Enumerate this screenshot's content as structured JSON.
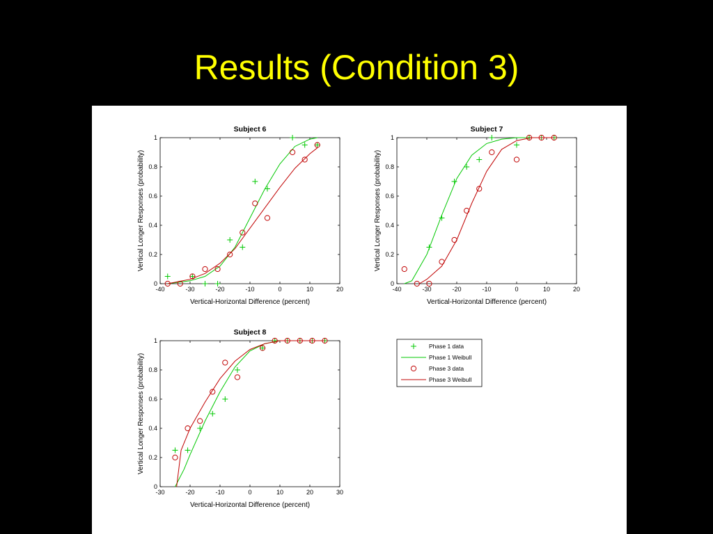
{
  "slide_title": "Results (Condition 3)",
  "legend": [
    "Phase 1 data",
    "Phase 1 Weibull",
    "Phase 3 data",
    "Phase 3 Weibull"
  ],
  "chart_data": [
    {
      "type": "scatter",
      "title": "Subject 6",
      "x_label": "Vertical-Horizontal Difference (percent)",
      "y_label": "Vertical Longer Responses (probability)",
      "xlim": [
        -40,
        20
      ],
      "xticks": [
        -40,
        -30,
        -20,
        -10,
        0,
        10,
        20
      ],
      "ylim": [
        0,
        1
      ],
      "yticks": [
        0,
        0.2,
        0.4,
        0.6,
        0.8,
        1
      ],
      "series": [
        {
          "mode": "markers",
          "marker": "plus",
          "color": "#00c800",
          "x": [
            -37.5,
            -29.2,
            -25,
            -20.8,
            -16.7,
            -12.5,
            -8.3,
            -4.2,
            4.2,
            8.3,
            12.5
          ],
          "values": [
            0.05,
            0.05,
            0,
            0,
            0.3,
            0.25,
            0.7,
            0.65,
            1,
            0.95,
            0.95
          ]
        },
        {
          "mode": "line",
          "color": "#00c800",
          "x": [
            -37.5,
            -30,
            -25,
            -20,
            -15,
            -10,
            -5,
            0,
            5,
            10,
            12.5
          ],
          "values": [
            0,
            0.02,
            0.05,
            0.12,
            0.25,
            0.45,
            0.65,
            0.82,
            0.94,
            0.99,
            1
          ]
        },
        {
          "mode": "markers",
          "marker": "circle",
          "color": "#c00000",
          "x": [
            -37.5,
            -33.3,
            -29.2,
            -25,
            -20.8,
            -16.7,
            -12.5,
            -8.3,
            -4.2,
            4.2,
            8.3,
            12.5
          ],
          "values": [
            0,
            0,
            0.05,
            0.1,
            0.1,
            0.2,
            0.35,
            0.55,
            0.45,
            0.9,
            0.85,
            0.95
          ]
        },
        {
          "mode": "line",
          "color": "#c00000",
          "x": [
            -37.5,
            -30,
            -25,
            -20,
            -15,
            -10,
            -5,
            0,
            5,
            10,
            12.5
          ],
          "values": [
            0,
            0.03,
            0.07,
            0.14,
            0.24,
            0.38,
            0.52,
            0.66,
            0.79,
            0.89,
            0.93
          ]
        }
      ]
    },
    {
      "type": "scatter",
      "title": "Subject 7",
      "x_label": "Vertical-Horizontal Difference (percent)",
      "y_label": "Vertical Longer Responses (probability)",
      "xlim": [
        -40,
        20
      ],
      "xticks": [
        -40,
        -30,
        -20,
        -10,
        0,
        10,
        20
      ],
      "ylim": [
        0,
        1
      ],
      "yticks": [
        0,
        0.2,
        0.4,
        0.6,
        0.8,
        1
      ],
      "series": [
        {
          "mode": "markers",
          "marker": "plus",
          "color": "#00c800",
          "x": [
            -29.2,
            -25,
            -20.8,
            -16.7,
            -12.5,
            -8.3,
            0,
            4.2,
            8.3,
            12.5
          ],
          "values": [
            0.25,
            0.45,
            0.7,
            0.8,
            0.85,
            1,
            0.95,
            1,
            1,
            1
          ]
        },
        {
          "mode": "line",
          "color": "#00c800",
          "x": [
            -37.5,
            -35,
            -30,
            -25,
            -20,
            -15,
            -10,
            -5,
            0,
            12.5
          ],
          "values": [
            0,
            0.02,
            0.2,
            0.47,
            0.72,
            0.88,
            0.96,
            0.99,
            1,
            1
          ]
        },
        {
          "mode": "markers",
          "marker": "circle",
          "color": "#c00000",
          "x": [
            -37.5,
            -33.3,
            -29.2,
            -25,
            -20.8,
            -16.7,
            -12.5,
            -8.3,
            0,
            4.2,
            8.3,
            12.5
          ],
          "values": [
            0.1,
            0,
            0,
            0.15,
            0.3,
            0.5,
            0.65,
            0.9,
            0.85,
            1,
            1,
            1
          ]
        },
        {
          "mode": "line",
          "color": "#c00000",
          "x": [
            -32.5,
            -30,
            -25,
            -20,
            -15,
            -10,
            -5,
            0,
            5,
            12.5
          ],
          "values": [
            0,
            0.03,
            0.12,
            0.3,
            0.55,
            0.77,
            0.92,
            0.98,
            1,
            1
          ]
        }
      ]
    },
    {
      "type": "scatter",
      "title": "Subject 8",
      "x_label": "Vertical-Horizontal Difference (percent)",
      "y_label": "Vertical Longer Responses (probability)",
      "xlim": [
        -30,
        30
      ],
      "xticks": [
        -30,
        -20,
        -10,
        0,
        10,
        20,
        30
      ],
      "ylim": [
        0,
        1
      ],
      "yticks": [
        0,
        0.2,
        0.4,
        0.6,
        0.8,
        1
      ],
      "series": [
        {
          "mode": "markers",
          "marker": "plus",
          "color": "#00c800",
          "x": [
            -25,
            -20.8,
            -16.7,
            -12.5,
            -8.3,
            -4.2,
            4.2,
            8.3,
            12.5,
            16.7,
            20.8,
            25
          ],
          "values": [
            0.25,
            0.25,
            0.4,
            0.5,
            0.6,
            0.8,
            0.95,
            1,
            1,
            1,
            1,
            1
          ]
        },
        {
          "mode": "line",
          "color": "#00c800",
          "x": [
            -25,
            -22,
            -20,
            -15,
            -10,
            -5,
            0,
            5,
            10,
            25
          ],
          "values": [
            0,
            0.12,
            0.22,
            0.45,
            0.65,
            0.82,
            0.93,
            0.98,
            1,
            1
          ]
        },
        {
          "mode": "markers",
          "marker": "circle",
          "color": "#c00000",
          "x": [
            -25,
            -20.8,
            -16.7,
            -12.5,
            -8.3,
            -4.2,
            4.2,
            8.3,
            12.5,
            16.7,
            20.8,
            25
          ],
          "values": [
            0.2,
            0.4,
            0.45,
            0.65,
            0.85,
            0.75,
            0.95,
            1,
            1,
            1,
            1,
            1
          ]
        },
        {
          "mode": "line",
          "color": "#c00000",
          "x": [
            -24.5,
            -23,
            -20,
            -15,
            -10,
            -5,
            0,
            5,
            10,
            25
          ],
          "values": [
            0,
            0.25,
            0.4,
            0.58,
            0.74,
            0.86,
            0.94,
            0.98,
            1,
            1
          ]
        }
      ]
    }
  ]
}
